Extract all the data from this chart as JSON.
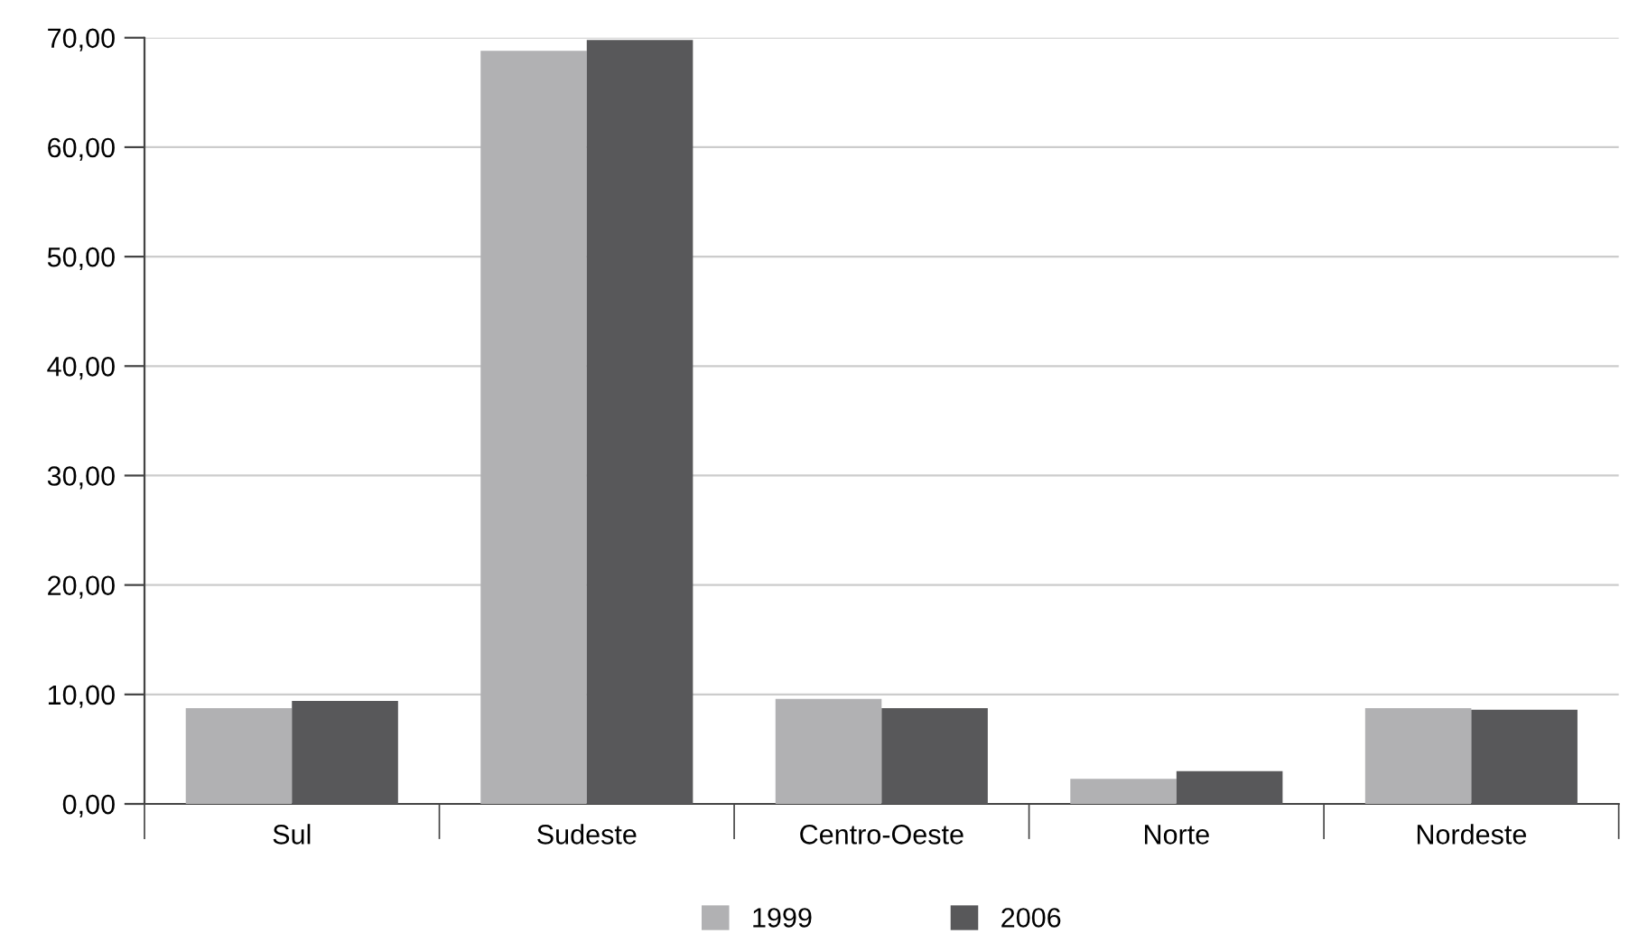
{
  "chart_data": {
    "type": "bar",
    "categories": [
      "Sul",
      "Sudeste",
      "Centro-Oeste",
      "Norte",
      "Nordeste"
    ],
    "series": [
      {
        "name": "1999",
        "color": "#b1b1b3",
        "values": [
          8.75,
          68.8,
          9.6,
          2.3,
          8.75
        ]
      },
      {
        "name": "2006",
        "color": "#58585a",
        "values": [
          9.4,
          69.8,
          8.75,
          3.0,
          8.6
        ]
      }
    ],
    "ylim": [
      0,
      70
    ],
    "yticks": [
      {
        "value": 0,
        "label": "0,00"
      },
      {
        "value": 10,
        "label": "10,00"
      },
      {
        "value": 20,
        "label": "20,00"
      },
      {
        "value": 30,
        "label": "30,00"
      },
      {
        "value": 40,
        "label": "40,00"
      },
      {
        "value": 50,
        "label": "50,00"
      },
      {
        "value": 60,
        "label": "60,00"
      },
      {
        "value": 70,
        "label": "70,00"
      }
    ],
    "grid": "y",
    "legend": "bottom"
  }
}
